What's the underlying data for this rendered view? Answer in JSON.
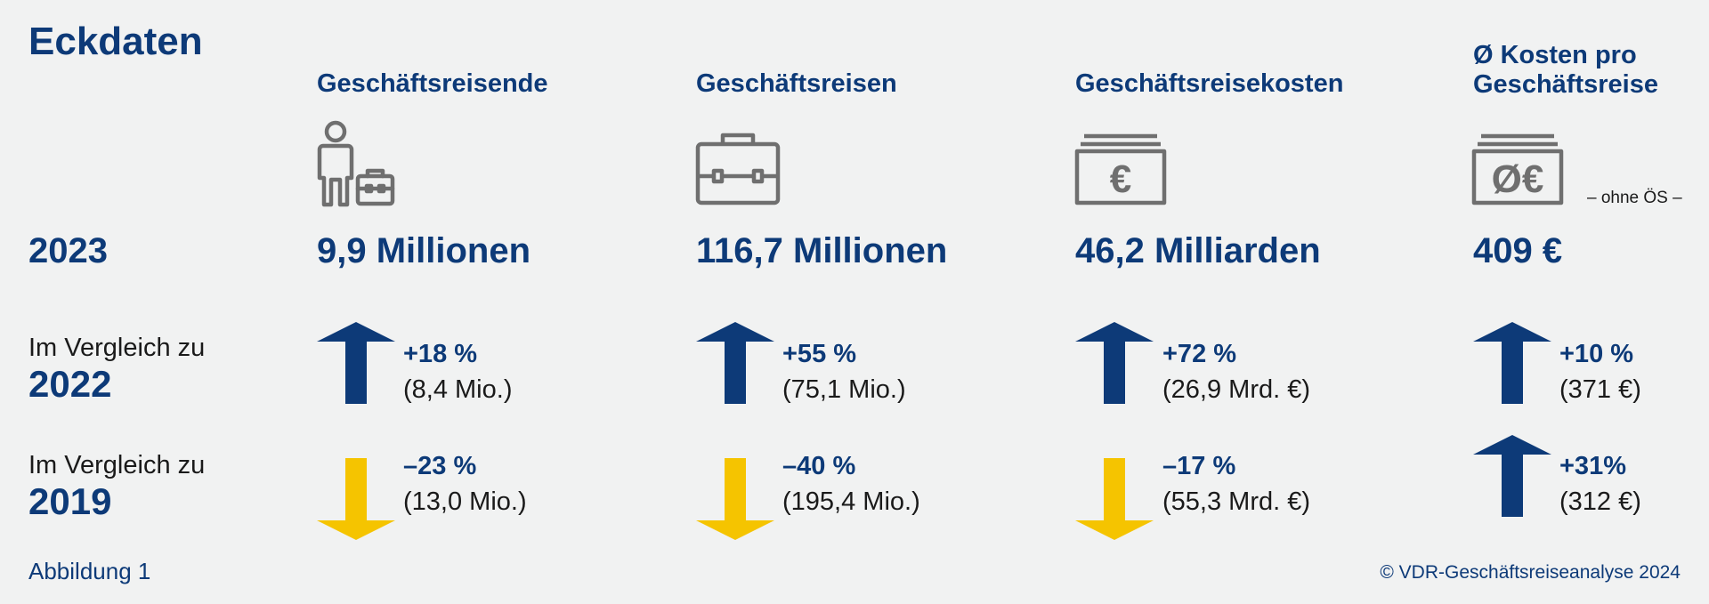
{
  "title": "Eckdaten",
  "year": "2023",
  "columns": [
    {
      "heading_lines": [
        "Geschäftsreisende"
      ],
      "icon": "traveler-with-case-icon",
      "value": "9,9 Millionen",
      "vs2022": {
        "direction": "up",
        "pct": "+18 %",
        "abs": "(8,4 Mio.)"
      },
      "vs2019": {
        "direction": "down",
        "pct": "–23 %",
        "abs": "(13,0 Mio.)"
      }
    },
    {
      "heading_lines": [
        "Geschäftsreisen"
      ],
      "icon": "briefcase-icon",
      "value": "116,7 Millionen",
      "vs2022": {
        "direction": "up",
        "pct": "+55 %",
        "abs": "(75,1 Mio.)"
      },
      "vs2019": {
        "direction": "down",
        "pct": "–40 %",
        "abs": "(195,4 Mio.)"
      }
    },
    {
      "heading_lines": [
        "Geschäftsreisekosten"
      ],
      "icon": "euro-banknotes-icon",
      "value": "46,2 Milliarden",
      "vs2022": {
        "direction": "up",
        "pct": "+72 %",
        "abs": "(26,9 Mrd. €)"
      },
      "vs2019": {
        "direction": "down",
        "pct": "–17 %",
        "abs": "(55,3 Mrd. €)"
      }
    },
    {
      "heading_lines": [
        "Ø Kosten pro",
        "Geschäftsreise"
      ],
      "icon": "average-euro-banknotes-icon",
      "value": "409 €",
      "note": "– ohne ÖS –",
      "vs2022": {
        "direction": "up",
        "pct": "+10 %",
        "abs": "(371 €)"
      },
      "vs2019": {
        "direction": "up",
        "pct": "+31%",
        "abs": "(312 €)"
      }
    }
  ],
  "compare": [
    {
      "label": "Im Vergleich zu",
      "year": "2022"
    },
    {
      "label": "Im Vergleich zu",
      "year": "2019"
    }
  ],
  "footer": {
    "left": "Abbildung 1",
    "right": "© VDR-Geschäftsreiseanalyse 2024"
  },
  "colors": {
    "navy": "#0d3a78",
    "yellow": "#f5c400",
    "icon_gray": "#6f6f6f",
    "background": "#f1f2f2"
  }
}
